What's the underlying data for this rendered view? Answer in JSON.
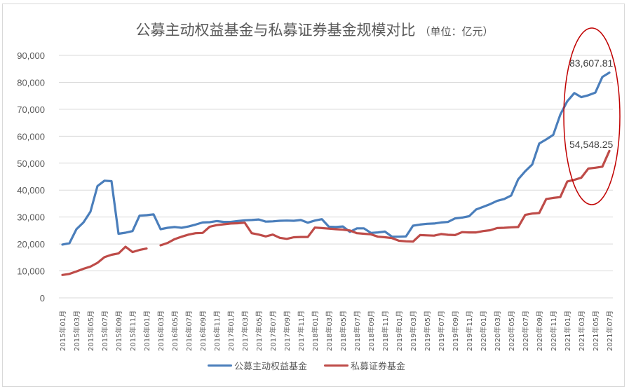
{
  "chart_data": {
    "type": "line",
    "title": "公募主动权益基金与私募证券基金规模对比",
    "unit": "（单位：亿元）",
    "xlabel": "",
    "ylabel": "",
    "ylim": [
      0,
      90000
    ],
    "yticks": [
      "0",
      "10,000",
      "20,000",
      "30,000",
      "40,000",
      "50,000",
      "60,000",
      "70,000",
      "80,000",
      "90,000"
    ],
    "grid": true,
    "legend_position": "bottom",
    "x_start": "2015-01",
    "x_end": "2021-07",
    "x_tick_step_months": 2,
    "x_tick_format": "YYYY年MM月",
    "series": [
      {
        "name": "公募主动权益基金",
        "color": "#4a7ebb",
        "values": [
          19800,
          20300,
          25500,
          28000,
          32000,
          41500,
          43500,
          43300,
          23800,
          24200,
          24800,
          30500,
          30700,
          31000,
          25500,
          26000,
          26300,
          26000,
          26500,
          27200,
          28000,
          28100,
          28500,
          28200,
          28200,
          28500,
          28800,
          28900,
          29100,
          28300,
          28400,
          28600,
          28700,
          28600,
          28900,
          27900,
          28700,
          29200,
          26400,
          26300,
          26500,
          24500,
          25800,
          25800,
          24100,
          24300,
          24600,
          22700,
          22700,
          22800,
          26800,
          27200,
          27500,
          27600,
          28000,
          28200,
          29500,
          29800,
          30300,
          32800,
          33800,
          34800,
          36000,
          36700,
          38000,
          44000,
          47000,
          49500,
          57300,
          58800,
          60500,
          68000,
          73000,
          76000,
          74500,
          75200,
          76200,
          82000,
          83607.81
        ]
      },
      {
        "name": "私募证券基金",
        "color": "#be4b48",
        "values": [
          8500,
          8900,
          9800,
          10800,
          11600,
          13000,
          15100,
          16000,
          16500,
          19000,
          17000,
          17800,
          18300,
          null,
          19500,
          20400,
          21800,
          22700,
          23500,
          24000,
          24100,
          26400,
          27000,
          27300,
          27600,
          27700,
          27900,
          24000,
          23500,
          22800,
          23500,
          22300,
          21900,
          22500,
          22600,
          22600,
          26100,
          25900,
          25700,
          25500,
          25300,
          25000,
          24000,
          23800,
          23600,
          22700,
          22500,
          22200,
          21200,
          21000,
          20900,
          23300,
          23200,
          23100,
          23700,
          23400,
          23300,
          24400,
          24300,
          24300,
          24800,
          25100,
          25900,
          26000,
          26200,
          26300,
          30800,
          31300,
          31500,
          36700,
          37100,
          37400,
          43200,
          43800,
          44600,
          48000,
          48300,
          48700,
          54548.25
        ]
      }
    ],
    "annotations": [
      {
        "text": "83,607.81",
        "series": 0,
        "point": "2021-07"
      },
      {
        "text": "54,548.25",
        "series": 1,
        "point": "2021-07"
      },
      {
        "type": "ellipse",
        "color": "#c00000",
        "note": "highlights 2020-12 to 2021-07"
      }
    ]
  }
}
